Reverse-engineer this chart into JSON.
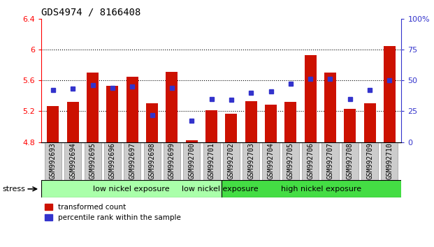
{
  "title": "GDS4974 / 8166408",
  "samples": [
    "GSM992693",
    "GSM992694",
    "GSM992695",
    "GSM992696",
    "GSM992697",
    "GSM992698",
    "GSM992699",
    "GSM992700",
    "GSM992701",
    "GSM992702",
    "GSM992703",
    "GSM992704",
    "GSM992705",
    "GSM992706",
    "GSM992707",
    "GSM992708",
    "GSM992709",
    "GSM992710"
  ],
  "red_values": [
    5.27,
    5.32,
    5.7,
    5.53,
    5.65,
    5.3,
    5.71,
    4.82,
    5.21,
    5.17,
    5.33,
    5.28,
    5.32,
    5.93,
    5.7,
    5.23,
    5.3,
    6.04
  ],
  "blue_values": [
    42,
    43,
    46,
    44,
    45,
    22,
    44,
    17,
    35,
    34,
    40,
    41,
    47,
    51,
    51,
    35,
    42,
    50
  ],
  "baseline": 4.8,
  "ylim_left": [
    4.8,
    6.4
  ],
  "ylim_right": [
    0,
    100
  ],
  "yticks_left": [
    4.8,
    5.2,
    5.6,
    6.0,
    6.4
  ],
  "yticks_right": [
    0,
    25,
    50,
    75,
    100
  ],
  "ytick_labels_left": [
    "4.8",
    "5.2",
    "5.6",
    "6",
    "6.4"
  ],
  "ytick_labels_right": [
    "0",
    "25",
    "50",
    "75",
    "100%"
  ],
  "group1_label": "low nickel exposure",
  "group2_label": "high nickel exposure",
  "group1_count": 9,
  "group2_count": 9,
  "stress_label": "stress",
  "legend_red": "transformed count",
  "legend_blue": "percentile rank within the sample",
  "bar_color": "#cc1100",
  "blue_color": "#3333cc",
  "group1_color": "#aaffaa",
  "group2_color": "#44dd44",
  "bg_color": "#ffffff",
  "title_fontsize": 10,
  "tick_fontsize": 8,
  "label_fontsize": 7
}
